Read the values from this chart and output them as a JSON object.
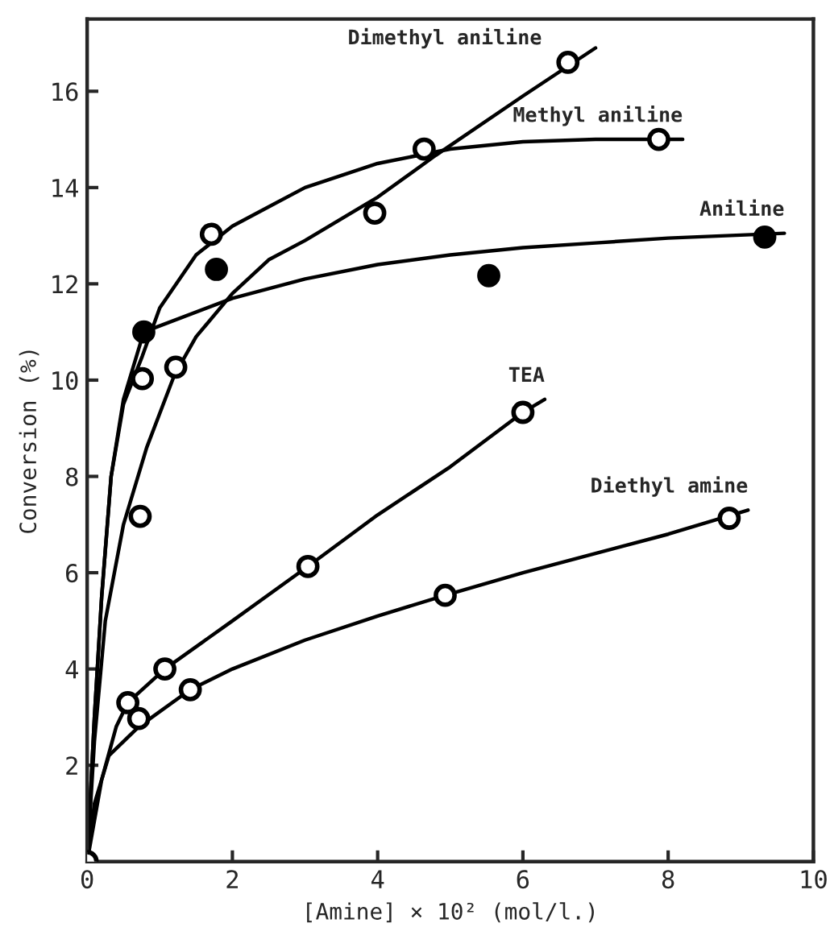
{
  "chart_data": {
    "type": "line",
    "xlabel": "[Amine] × 10² (mol/l.)",
    "ylabel": "Conversion (%)",
    "xlim": [
      0,
      10
    ],
    "ylim": [
      0,
      17.5
    ],
    "xticks": [
      0,
      2,
      4,
      6,
      8,
      10
    ],
    "yticks": [
      2,
      4,
      6,
      8,
      10,
      12,
      14,
      16
    ],
    "grid": false,
    "legend": false,
    "series": [
      {
        "name": "Dimethyl aniline",
        "color": "#000000",
        "marker": "none",
        "x": [
          0,
          0.1,
          0.25,
          0.5,
          0.82,
          1.2,
          1.5,
          2,
          2.5,
          3,
          4,
          4.8,
          6,
          7
        ],
        "values": [
          0,
          2.5,
          5,
          7,
          8.6,
          10.1,
          10.9,
          11.8,
          12.5,
          12.9,
          13.8,
          14.67,
          15.9,
          16.9
        ]
      },
      {
        "name": "Methyl aniline",
        "color": "#000000",
        "marker": "none",
        "x": [
          0,
          0.1,
          0.2,
          0.33,
          0.5,
          0.76,
          1,
          1.5,
          2,
          3,
          4,
          5,
          6,
          7,
          8.2
        ],
        "values": [
          0,
          3,
          5.5,
          8,
          9.5,
          10.5,
          11.5,
          12.6,
          13.2,
          14,
          14.5,
          14.8,
          14.95,
          15,
          15
        ]
      },
      {
        "name": "Aniline",
        "color": "#000000",
        "marker": "none",
        "x": [
          0,
          0.1,
          0.2,
          0.33,
          0.5,
          0.78,
          2,
          3,
          4,
          5,
          6,
          7,
          8,
          9.6
        ],
        "values": [
          0,
          3,
          5.5,
          8,
          9.6,
          11,
          11.7,
          12.1,
          12.4,
          12.6,
          12.75,
          12.85,
          12.95,
          13.05
        ]
      },
      {
        "name": "TEA",
        "color": "#000000",
        "marker": "none",
        "x": [
          0,
          0.2,
          0.4,
          0.56,
          1.07,
          2,
          3.04,
          4,
          5,
          6,
          6.3
        ],
        "values": [
          0,
          1.7,
          2.8,
          3.3,
          4,
          5,
          6.13,
          7.2,
          8.2,
          9.33,
          9.6
        ]
      },
      {
        "name": "Diethyl amine",
        "color": "#000000",
        "marker": "none",
        "x": [
          0,
          0.1,
          0.3,
          0.71,
          1.42,
          2,
          3,
          4,
          4.93,
          6,
          7,
          8,
          9.1
        ],
        "values": [
          0,
          1.2,
          2.2,
          2.8,
          3.57,
          4,
          4.6,
          5.1,
          5.53,
          6,
          6.4,
          6.8,
          7.3
        ]
      },
      {
        "type": "scatter",
        "color": "#ffffff",
        "marker": "circle",
        "x": [
          0.73,
          1.22,
          3.96,
          6.62
        ],
        "values": [
          7.17,
          10.27,
          13.47,
          16.6
        ]
      },
      {
        "type": "scatter",
        "color": "#ffffff",
        "marker": "circle",
        "x": [
          0.76,
          1.71,
          4.64,
          7.87
        ],
        "values": [
          10.03,
          13.03,
          14.8,
          15.0
        ]
      },
      {
        "type": "scatter",
        "color": "#000000",
        "marker": "circle",
        "x": [
          0.78,
          1.78,
          5.53,
          9.33
        ],
        "values": [
          11.0,
          12.3,
          12.17,
          12.97
        ]
      },
      {
        "type": "scatter",
        "color": "#ffffff",
        "marker": "circle",
        "x": [
          0,
          0.56,
          1.07,
          3.04,
          6.0
        ],
        "values": [
          0,
          3.3,
          4.0,
          6.13,
          9.33
        ]
      },
      {
        "type": "scatter",
        "color": "#ffffff",
        "marker": "circle",
        "x": [
          0.71,
          1.42,
          4.93,
          8.84
        ],
        "values": [
          2.97,
          3.57,
          5.53,
          7.13
        ]
      }
    ]
  }
}
